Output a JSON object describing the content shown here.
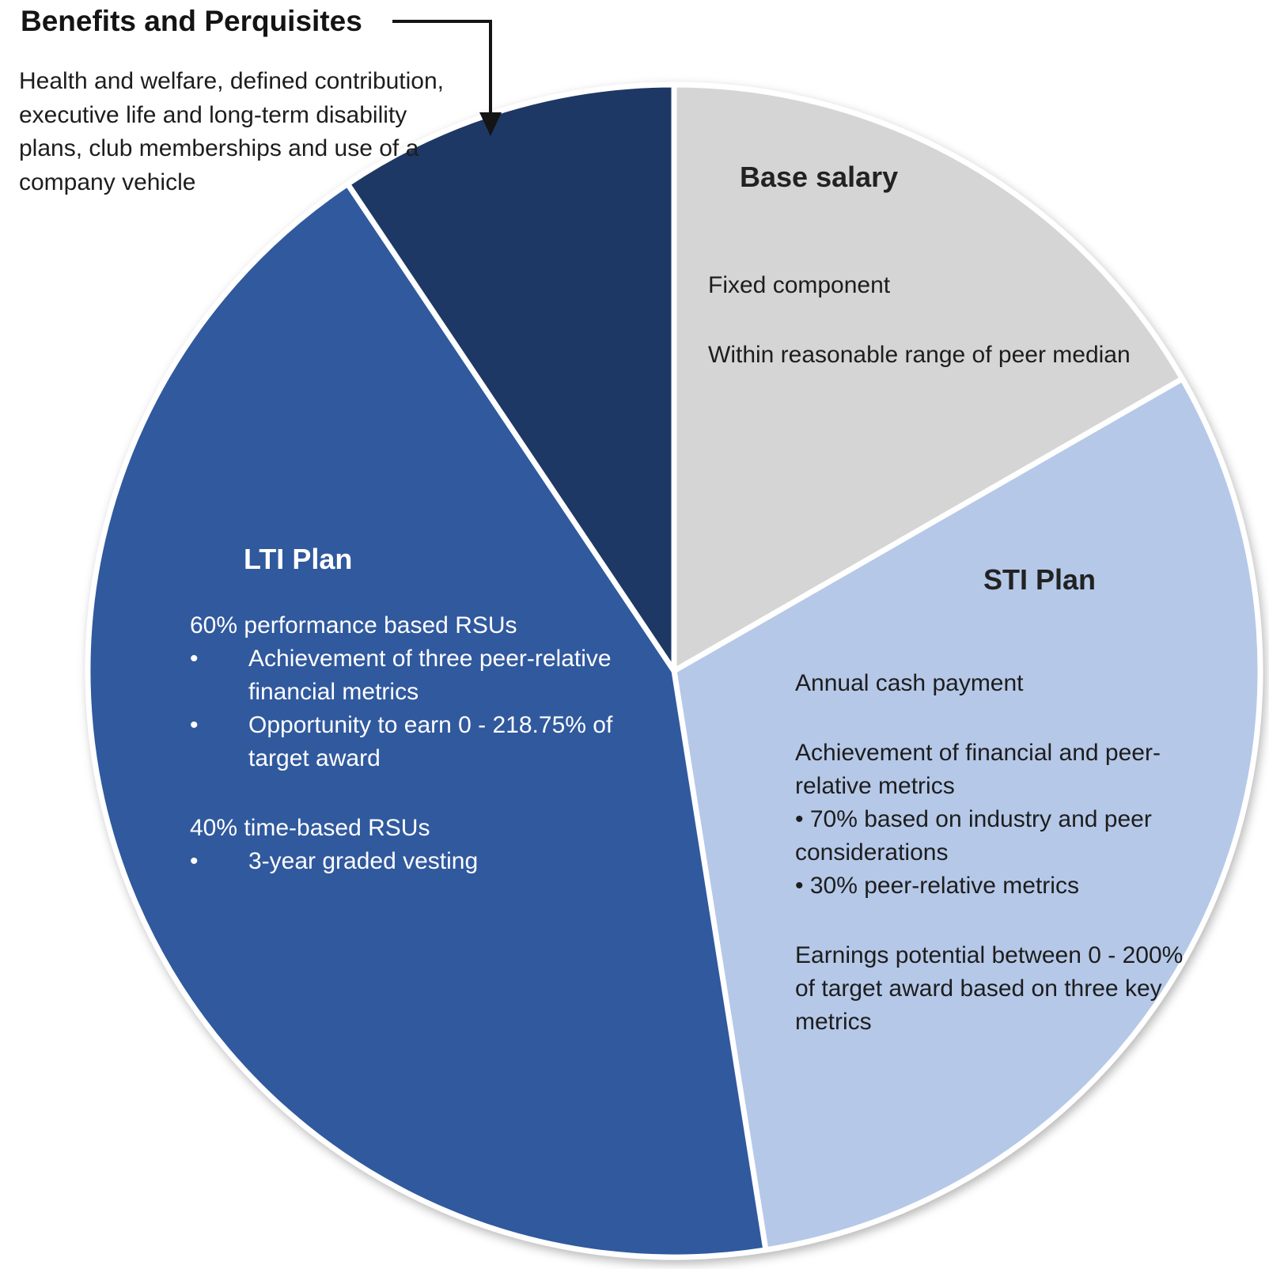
{
  "chart_data": {
    "type": "pie",
    "direction": "clockwise",
    "start_angle_deg": 0,
    "gap_color": "#ffffff",
    "slices": [
      {
        "label": "Base salary",
        "value": 16.7,
        "color": "#d5d5d6",
        "notes": [
          "Fixed component",
          "Within reasonable range of peer median"
        ]
      },
      {
        "label": "STI Plan",
        "value": 30.8,
        "color": "#b5c8e8",
        "body": [
          "Annual cash payment",
          "Achievement of financial and peer-relative metrics",
          "70% based on industry and peer considerations",
          "30% peer-relative metrics",
          "Earnings potential between 0 - 200% of target award based on three key metrics"
        ],
        "bullet_items": [
          2,
          3
        ]
      },
      {
        "label": "LTI Plan",
        "value": 43.1,
        "color": "#30599e",
        "body": [
          "60% performance based RSUs",
          "Achievement of three peer-relative financial metrics",
          "Opportunity to earn 0 - 218.75% of target award",
          "40% time-based RSUs",
          "3-year graded vesting"
        ],
        "bullet_items": [
          1,
          2,
          4
        ]
      },
      {
        "label": "Benefits and Perquisites",
        "value": 9.4,
        "color": "#1e3865",
        "note": "Health and welfare, defined contribution, executive life and long-term disability plans, club memberships and use of a company vehicle"
      }
    ]
  }
}
